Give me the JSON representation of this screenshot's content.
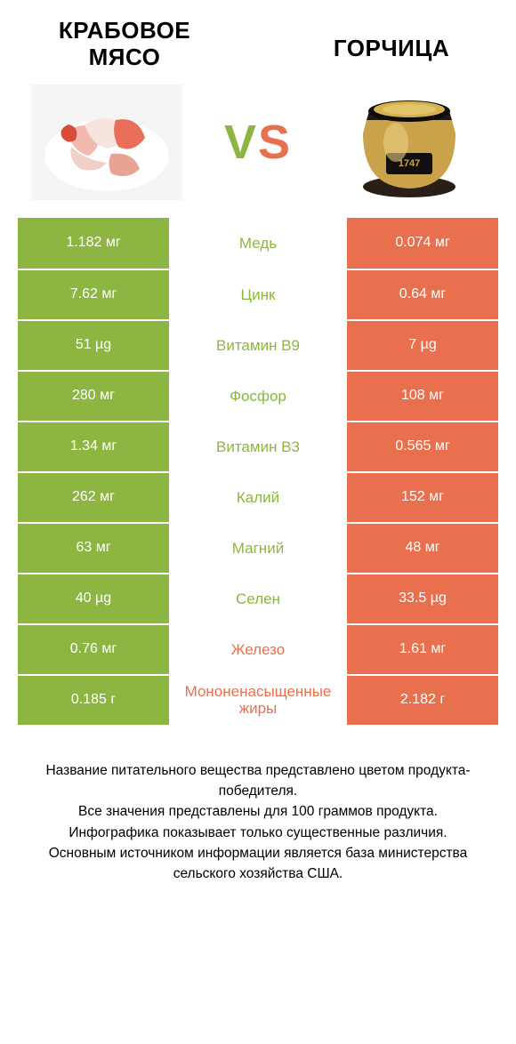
{
  "colors": {
    "green": "#8db542",
    "orange": "#e8704f",
    "text": "#000000",
    "white": "#ffffff"
  },
  "left_title": "Крабовое мясо",
  "right_title": "Горчица",
  "vs": {
    "v": "V",
    "s": "S"
  },
  "rows": [
    {
      "left": "1.182 мг",
      "mid": "Медь",
      "right": "0.074 мг",
      "winner": "left"
    },
    {
      "left": "7.62 мг",
      "mid": "Цинк",
      "right": "0.64 мг",
      "winner": "left"
    },
    {
      "left": "51 µg",
      "mid": "Витамин B9",
      "right": "7 µg",
      "winner": "left"
    },
    {
      "left": "280 мг",
      "mid": "Фосфор",
      "right": "108 мг",
      "winner": "left"
    },
    {
      "left": "1.34 мг",
      "mid": "Витамин B3",
      "right": "0.565 мг",
      "winner": "left"
    },
    {
      "left": "262 мг",
      "mid": "Калий",
      "right": "152 мг",
      "winner": "left"
    },
    {
      "left": "63 мг",
      "mid": "Магний",
      "right": "48 мг",
      "winner": "left"
    },
    {
      "left": "40 µg",
      "mid": "Селен",
      "right": "33.5 µg",
      "winner": "left"
    },
    {
      "left": "0.76 мг",
      "mid": "Железо",
      "right": "1.61 мг",
      "winner": "right"
    },
    {
      "left": "0.185 г",
      "mid": "Мононенасыщенные жиры",
      "right": "2.182 г",
      "winner": "right"
    }
  ],
  "footer": [
    "Название питательного вещества представлено цветом продукта-победителя.",
    "Все значения представлены для 100 граммов продукта.",
    "Инфографика показывает только существенные различия.",
    "Основным источником информации является база министерства сельского хозяйства США."
  ]
}
